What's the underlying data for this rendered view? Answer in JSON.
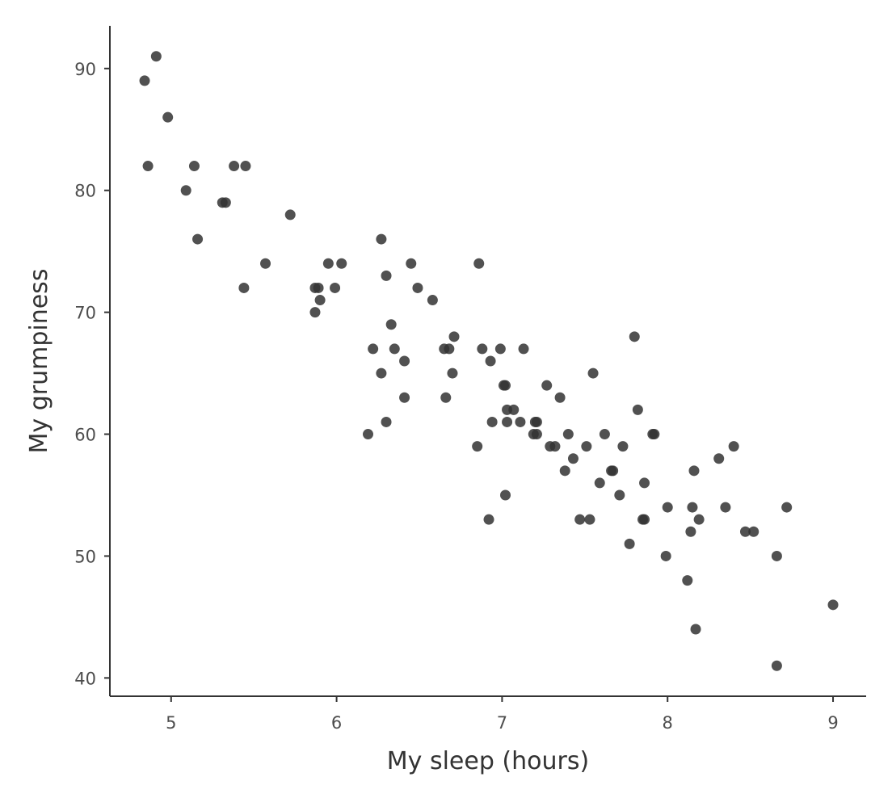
{
  "chart_data": {
    "type": "scatter",
    "xlabel": "My sleep (hours)",
    "ylabel": "My grumpiness",
    "xlim": [
      4.63,
      9.2
    ],
    "ylim": [
      38.5,
      93.5
    ],
    "xticks": [
      5,
      6,
      7,
      8,
      9
    ],
    "yticks": [
      40,
      50,
      60,
      70,
      80,
      90
    ],
    "grid": false,
    "legend": "none",
    "point_color": "#333333",
    "point_opacity": 0.85,
    "points": [
      {
        "x": 4.84,
        "y": 89
      },
      {
        "x": 4.91,
        "y": 91
      },
      {
        "x": 4.98,
        "y": 86
      },
      {
        "x": 4.86,
        "y": 82
      },
      {
        "x": 5.09,
        "y": 80
      },
      {
        "x": 5.14,
        "y": 82
      },
      {
        "x": 5.16,
        "y": 76
      },
      {
        "x": 5.31,
        "y": 79
      },
      {
        "x": 5.33,
        "y": 79
      },
      {
        "x": 5.38,
        "y": 82
      },
      {
        "x": 5.45,
        "y": 82
      },
      {
        "x": 5.44,
        "y": 72
      },
      {
        "x": 5.57,
        "y": 74
      },
      {
        "x": 5.72,
        "y": 78
      },
      {
        "x": 5.87,
        "y": 72
      },
      {
        "x": 5.89,
        "y": 72
      },
      {
        "x": 5.87,
        "y": 70
      },
      {
        "x": 5.9,
        "y": 71
      },
      {
        "x": 5.95,
        "y": 74
      },
      {
        "x": 5.99,
        "y": 72
      },
      {
        "x": 6.03,
        "y": 74
      },
      {
        "x": 6.19,
        "y": 60
      },
      {
        "x": 6.22,
        "y": 67
      },
      {
        "x": 6.27,
        "y": 76
      },
      {
        "x": 6.27,
        "y": 65
      },
      {
        "x": 6.3,
        "y": 73
      },
      {
        "x": 6.3,
        "y": 61
      },
      {
        "x": 6.33,
        "y": 69
      },
      {
        "x": 6.35,
        "y": 67
      },
      {
        "x": 6.41,
        "y": 66
      },
      {
        "x": 6.41,
        "y": 63
      },
      {
        "x": 6.45,
        "y": 74
      },
      {
        "x": 6.49,
        "y": 72
      },
      {
        "x": 6.58,
        "y": 71
      },
      {
        "x": 6.65,
        "y": 67
      },
      {
        "x": 6.66,
        "y": 63
      },
      {
        "x": 6.68,
        "y": 67
      },
      {
        "x": 6.7,
        "y": 65
      },
      {
        "x": 6.71,
        "y": 68
      },
      {
        "x": 6.85,
        "y": 59
      },
      {
        "x": 6.86,
        "y": 74
      },
      {
        "x": 6.88,
        "y": 67
      },
      {
        "x": 6.92,
        "y": 53
      },
      {
        "x": 6.93,
        "y": 66
      },
      {
        "x": 6.94,
        "y": 61
      },
      {
        "x": 6.99,
        "y": 67
      },
      {
        "x": 7.01,
        "y": 64
      },
      {
        "x": 7.02,
        "y": 64
      },
      {
        "x": 7.02,
        "y": 55
      },
      {
        "x": 7.03,
        "y": 62
      },
      {
        "x": 7.03,
        "y": 61
      },
      {
        "x": 7.07,
        "y": 62
      },
      {
        "x": 7.11,
        "y": 61
      },
      {
        "x": 7.13,
        "y": 67
      },
      {
        "x": 7.19,
        "y": 60
      },
      {
        "x": 7.2,
        "y": 61
      },
      {
        "x": 7.21,
        "y": 61
      },
      {
        "x": 7.21,
        "y": 60
      },
      {
        "x": 7.27,
        "y": 64
      },
      {
        "x": 7.29,
        "y": 59
      },
      {
        "x": 7.32,
        "y": 59
      },
      {
        "x": 7.35,
        "y": 63
      },
      {
        "x": 7.38,
        "y": 57
      },
      {
        "x": 7.4,
        "y": 60
      },
      {
        "x": 7.43,
        "y": 58
      },
      {
        "x": 7.47,
        "y": 53
      },
      {
        "x": 7.51,
        "y": 59
      },
      {
        "x": 7.53,
        "y": 53
      },
      {
        "x": 7.55,
        "y": 65
      },
      {
        "x": 7.59,
        "y": 56
      },
      {
        "x": 7.62,
        "y": 60
      },
      {
        "x": 7.66,
        "y": 57
      },
      {
        "x": 7.67,
        "y": 57
      },
      {
        "x": 7.71,
        "y": 55
      },
      {
        "x": 7.73,
        "y": 59
      },
      {
        "x": 7.77,
        "y": 51
      },
      {
        "x": 7.8,
        "y": 68
      },
      {
        "x": 7.82,
        "y": 62
      },
      {
        "x": 7.85,
        "y": 53
      },
      {
        "x": 7.86,
        "y": 53
      },
      {
        "x": 7.86,
        "y": 56
      },
      {
        "x": 7.91,
        "y": 60
      },
      {
        "x": 7.92,
        "y": 60
      },
      {
        "x": 7.99,
        "y": 50
      },
      {
        "x": 8.0,
        "y": 54
      },
      {
        "x": 8.12,
        "y": 48
      },
      {
        "x": 8.14,
        "y": 52
      },
      {
        "x": 8.15,
        "y": 54
      },
      {
        "x": 8.16,
        "y": 57
      },
      {
        "x": 8.17,
        "y": 44
      },
      {
        "x": 8.19,
        "y": 53
      },
      {
        "x": 8.31,
        "y": 58
      },
      {
        "x": 8.35,
        "y": 54
      },
      {
        "x": 8.4,
        "y": 59
      },
      {
        "x": 8.47,
        "y": 52
      },
      {
        "x": 8.52,
        "y": 52
      },
      {
        "x": 8.66,
        "y": 50
      },
      {
        "x": 8.66,
        "y": 41
      },
      {
        "x": 8.72,
        "y": 54
      },
      {
        "x": 9.0,
        "y": 46
      }
    ]
  }
}
